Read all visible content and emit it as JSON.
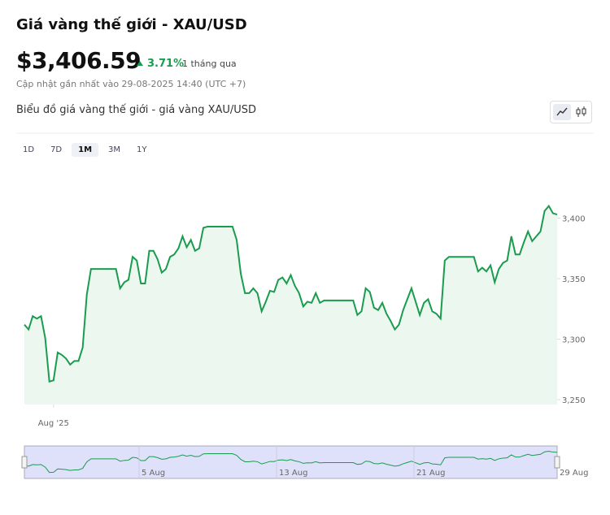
{
  "header": {
    "title": "Giá vàng thế giới - XAU/USD",
    "price": "$3,406.59",
    "change": "3.71%",
    "period": "1 tháng qua",
    "updated": "Cập nhật gần nhất vào 29-08-2025 14:40 (UTC +7)",
    "subtitle": "Biểu đồ giá vàng thế giới - giá vàng XAU/USD",
    "ranges": [
      "1D",
      "7D",
      "1M",
      "3M",
      "1Y"
    ],
    "active_range": "1M"
  },
  "chart_data": {
    "type": "line",
    "color": "#1a9c4e",
    "values": [
      3312,
      3308,
      3319,
      3317,
      3319,
      3301,
      3265,
      3266,
      3289,
      3287,
      3284,
      3279,
      3282,
      3282,
      3293,
      3337,
      3358,
      3358,
      3358,
      3358,
      3358,
      3358,
      3358,
      3342,
      3347,
      3349,
      3368,
      3365,
      3346,
      3346,
      3373,
      3373,
      3366,
      3355,
      3358,
      3368,
      3370,
      3375,
      3385,
      3376,
      3382,
      3373,
      3375,
      3392,
      3393,
      3393,
      3393,
      3393,
      3393,
      3393,
      3393,
      3382,
      3354,
      3338,
      3338,
      3342,
      3338,
      3323,
      3331,
      3340,
      3339,
      3349,
      3351,
      3346,
      3353,
      3344,
      3338,
      3327,
      3331,
      3330,
      3338,
      3330,
      3332,
      3332,
      3332,
      3332,
      3332,
      3332,
      3332,
      3332,
      3320,
      3323,
      3342,
      3339,
      3326,
      3324,
      3330,
      3321,
      3315,
      3308,
      3312,
      3324,
      3333,
      3342,
      3331,
      3320,
      3330,
      3333,
      3323,
      3321,
      3317,
      3365,
      3368,
      3368,
      3368,
      3368,
      3368,
      3368,
      3368,
      3356,
      3359,
      3356,
      3361,
      3347,
      3358,
      3363,
      3365,
      3385,
      3370,
      3370,
      3380,
      3389,
      3381,
      3385,
      3389,
      3406,
      3410,
      3404,
      3403
    ],
    "ylim": [
      3246,
      3446
    ],
    "yticks": [
      {
        "value": 3250,
        "label": "3,250"
      },
      {
        "value": 3300,
        "label": "3,300"
      },
      {
        "value": 3350,
        "label": "3,350"
      },
      {
        "value": 3400,
        "label": "3,400"
      }
    ],
    "xticks": [
      {
        "value": 7,
        "label": "Aug '25"
      }
    ],
    "navigator_labels": [
      "5 Aug",
      "13 Aug",
      "21 Aug",
      "29 Aug"
    ]
  }
}
